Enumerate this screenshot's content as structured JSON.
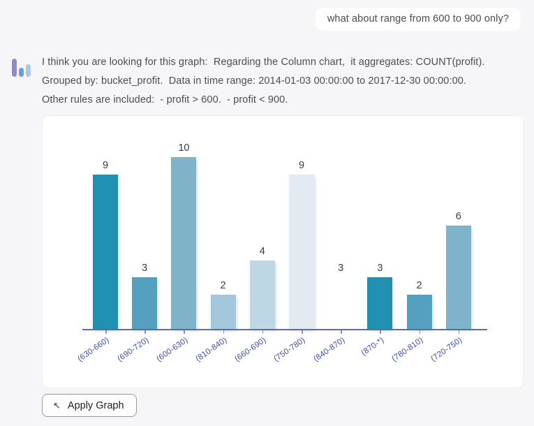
{
  "user_message": {
    "text": "what about range from 600 to 900 only?"
  },
  "assistant_message": {
    "avatar": {
      "icon": "bar-chart-icon",
      "bar_colors": [
        "#928ac5",
        "#66a0d6",
        "#a9c8e6"
      ]
    },
    "lines": [
      "I think you are looking for this graph:  Regarding the Column chart,  it aggregates: COUNT(profit).",
      "Grouped by: bucket_profit.  Data in time range: 2014-01-03 00:00:00 to 2017-12-30 00:00:00.",
      "Other rules are included:  - profit > 600.  - profit < 900."
    ]
  },
  "chart_data": {
    "type": "bar",
    "title": "",
    "xlabel": "",
    "ylabel": "",
    "categories": [
      "(630-660)",
      "(690-720)",
      "(600-630)",
      "(810-840)",
      "(660-690)",
      "(750-780)",
      "(840-870)",
      "(870-*)",
      "(780-810)",
      "(720-750)"
    ],
    "values": [
      9,
      3,
      10,
      2,
      4,
      9,
      3,
      3,
      2,
      6
    ],
    "bar_colors": [
      "#2191b2",
      "#54a0bf",
      "#7eb3ca",
      "#a3c8db",
      "#bfd7e4",
      "#e1ebf1",
      "#ffffff",
      "#2191b2",
      "#54a0bf",
      "#7eb3ca"
    ],
    "ylim": [
      0,
      10
    ],
    "grid": false,
    "legend": false,
    "value_labels_shown": true,
    "aggregation": "COUNT(profit)",
    "grouped_by": "bucket_profit",
    "axis_line_color": "#5b69b3",
    "tick_color": "#8690c6",
    "category_label_color": "#3c4da5",
    "value_label_color": "#3a3a3e"
  },
  "apply_button": {
    "label": "Apply Graph",
    "icon": "arrow-up-left",
    "icon_glyph": "↖"
  }
}
